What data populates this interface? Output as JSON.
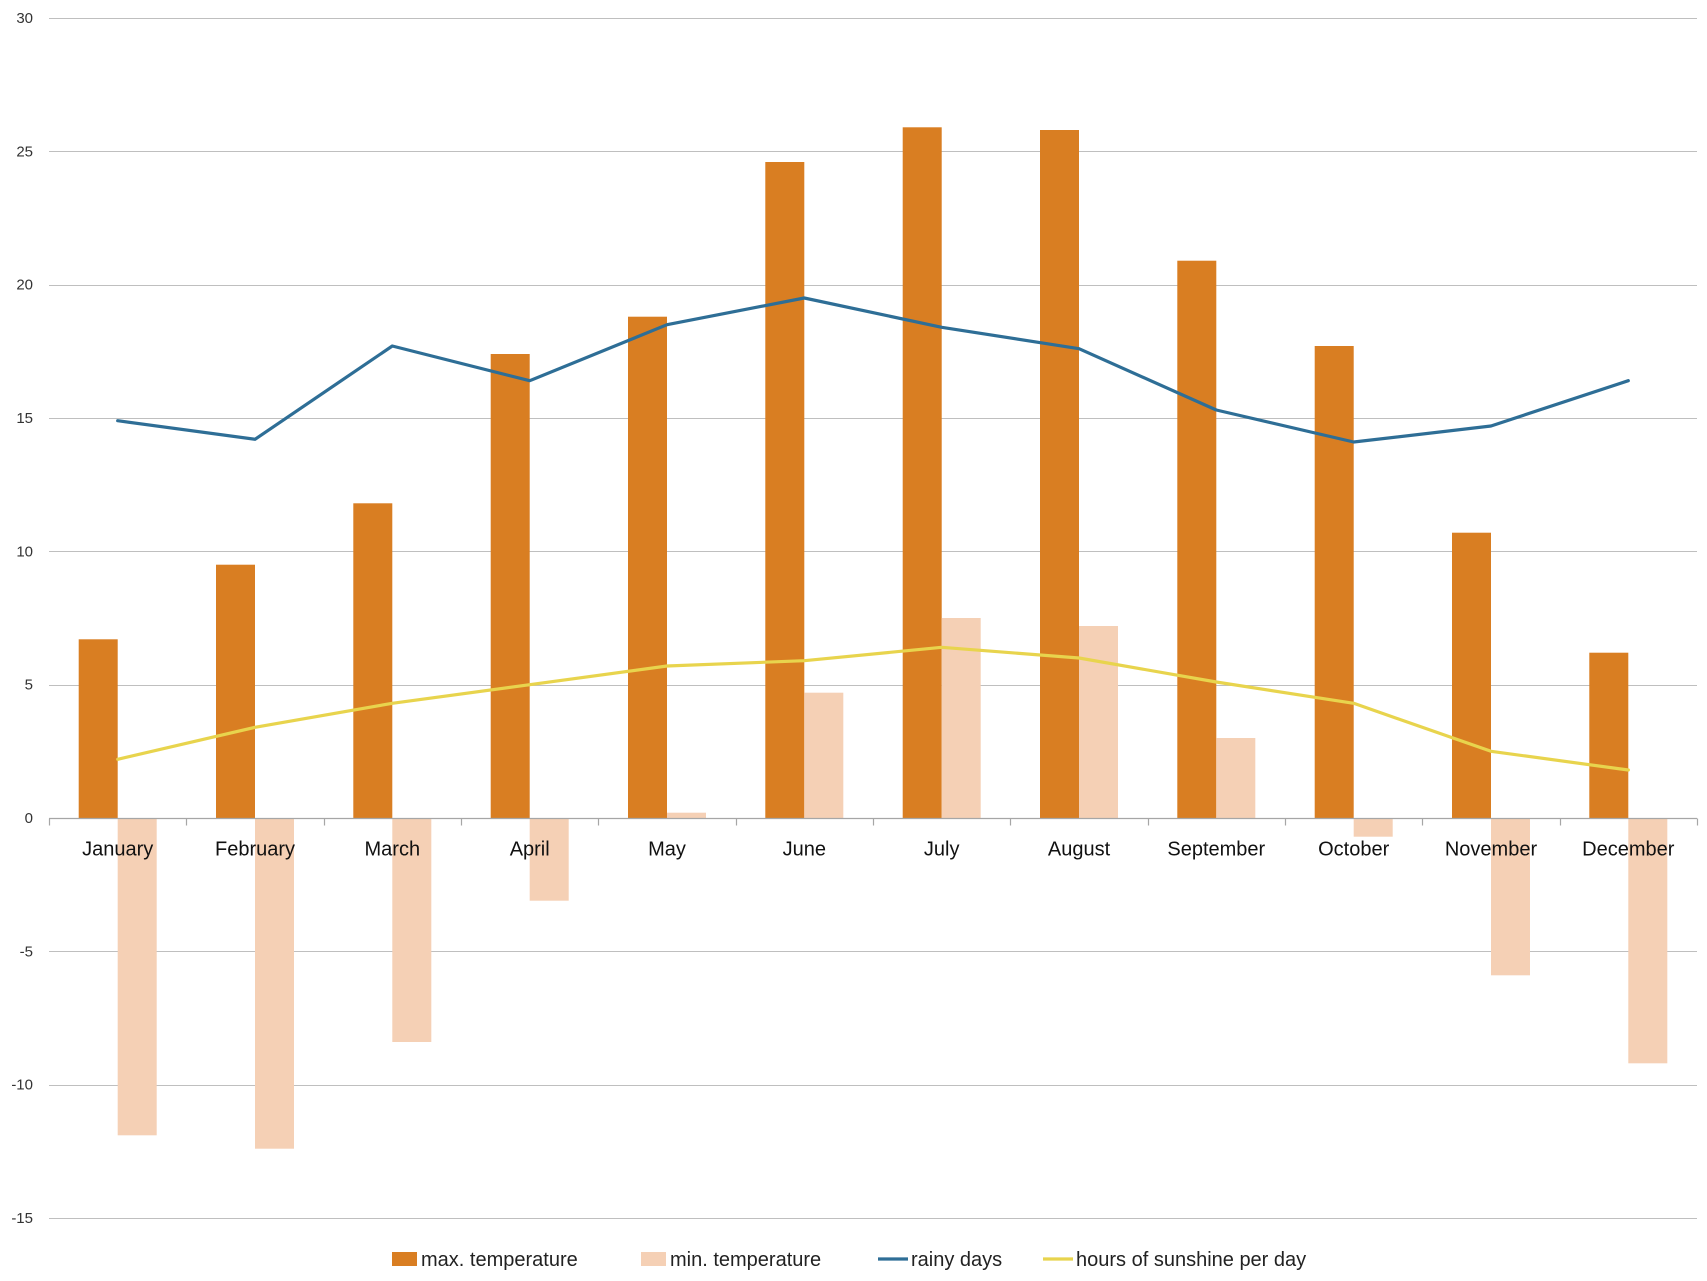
{
  "chart_data": {
    "type": "bar",
    "title": "",
    "xlabel": "",
    "ylabel": "",
    "ylim": [
      -15,
      30
    ],
    "yticks": [
      30,
      25,
      20,
      15,
      10,
      5,
      0,
      -5,
      -10,
      -15
    ],
    "grid": true,
    "legend_position": "bottom",
    "categories": [
      "January",
      "February",
      "March",
      "April",
      "May",
      "June",
      "July",
      "August",
      "September",
      "October",
      "November",
      "December"
    ],
    "series": [
      {
        "name": "max.  temperature",
        "kind": "bar",
        "color": "#d97e22",
        "values": [
          6.7,
          9.5,
          11.8,
          17.4,
          18.8,
          24.6,
          25.9,
          25.8,
          20.9,
          17.7,
          10.7,
          6.2
        ]
      },
      {
        "name": "min. temperature",
        "kind": "bar",
        "color": "#f5d0b5",
        "values": [
          -11.9,
          -12.4,
          -8.4,
          -3.1,
          0.2,
          4.7,
          7.5,
          7.2,
          3.0,
          -0.7,
          -5.9,
          -9.2
        ]
      },
      {
        "name": "rainy days",
        "kind": "line",
        "color": "#2e6e96",
        "values": [
          14.9,
          14.2,
          17.7,
          16.4,
          18.5,
          19.5,
          18.4,
          17.6,
          15.3,
          14.1,
          14.7,
          16.4
        ]
      },
      {
        "name": "hours of sunshine per day",
        "kind": "line",
        "color": "#e8d44d",
        "values": [
          2.2,
          3.4,
          4.3,
          5.0,
          5.7,
          5.9,
          6.4,
          6.0,
          5.1,
          4.3,
          2.5,
          1.8
        ]
      }
    ]
  }
}
